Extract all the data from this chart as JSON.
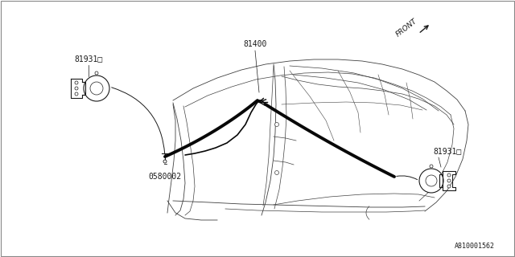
{
  "bg_color": "#ffffff",
  "lc": "#404040",
  "dc": "#1a1a1a",
  "hc": "#0a0a0a",
  "label_81400": "81400",
  "label_81931_left": "81931□",
  "label_81931_right": "81931□",
  "label_0580002": "0580002",
  "label_front": "FRONT",
  "label_ref": "A810001562",
  "font_size": 7,
  "ref_size": 6
}
